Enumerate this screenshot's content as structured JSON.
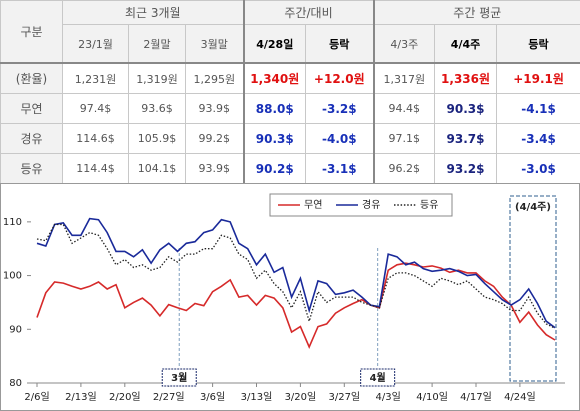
{
  "table": {
    "group_headers": [
      "구분",
      "최근 3개월",
      "주간/대비",
      "주간 평균"
    ],
    "columns": [
      "23/1월",
      "2월말",
      "3월말",
      "4/28일",
      "등락",
      "4/3주",
      "4/4주",
      "등락"
    ],
    "rows": [
      [
        "(환율)",
        "1,231원",
        "1,319원",
        "1,295원",
        "1,340원",
        "+12.0원",
        "1,317원",
        "1,336원",
        "+19.1원"
      ],
      [
        "무연",
        "97.4$",
        "93.6$",
        "93.9$",
        "88.0$",
        "-3.2$",
        "94.4$",
        "90.3$",
        "-4.1$"
      ],
      [
        "경유",
        "114.6$",
        "105.9$",
        "99.2$",
        "90.3$",
        "-4.0$",
        "97.1$",
        "93.7$",
        "-3.4$"
      ],
      [
        "등유",
        "114.4$",
        "104.1$",
        "93.9$",
        "90.2$",
        "-3.1$",
        "96.2$",
        "93.2$",
        "-3.0$"
      ]
    ]
  },
  "chart_data": {
    "type": "line",
    "categories": [
      "2/6일",
      null,
      null,
      null,
      null,
      "2/13일",
      null,
      null,
      null,
      null,
      "2/20일",
      null,
      null,
      null,
      null,
      "2/27일",
      null,
      null,
      null,
      null,
      "3/6일",
      null,
      null,
      null,
      null,
      "3/13일",
      null,
      null,
      null,
      null,
      "3/20일",
      null,
      null,
      null,
      null,
      "3/27일",
      null,
      null,
      null,
      null,
      "4/3일",
      null,
      null,
      null,
      null,
      "4/10일",
      null,
      null,
      null,
      null,
      "4/17일",
      null,
      null,
      null,
      null,
      "4/24일",
      null,
      null,
      null,
      null
    ],
    "series": [
      {
        "name": "무연",
        "color": "#d62a2a",
        "values": [
          92.2,
          96.8,
          98.8,
          98.6,
          98,
          97.5,
          98,
          98.8,
          97.5,
          98.3,
          94,
          95,
          95.8,
          94.5,
          92.5,
          94.6,
          94,
          93.5,
          94.8,
          94.4,
          97,
          98,
          99.2,
          96,
          96.3,
          94.5,
          96.3,
          95.8,
          94,
          89.5,
          90.5,
          86.7,
          90.5,
          91,
          93,
          94,
          94.8,
          95.5,
          94.5,
          94,
          101,
          102,
          102.3,
          102,
          101.6,
          101.8,
          101.4,
          100.6,
          101,
          100.5,
          100.5,
          99,
          98,
          96,
          94.5,
          91.3,
          93.2,
          90.8,
          89,
          88.0
        ]
      },
      {
        "name": "경유",
        "color": "#1a2a9a",
        "values": [
          106,
          105.5,
          109.5,
          109.8,
          107.5,
          107.5,
          110.6,
          110.4,
          108,
          104.5,
          104.5,
          103.5,
          104.8,
          102.3,
          104.8,
          106,
          104.5,
          106,
          106.3,
          108,
          108.5,
          110.4,
          110,
          106,
          105,
          102,
          104,
          100.6,
          101.5,
          96,
          99.5,
          93.5,
          99,
          98.5,
          96.5,
          96.8,
          97.3,
          96,
          94.5,
          94.2,
          104,
          103.5,
          102,
          102.5,
          101.3,
          100.8,
          101,
          101.3,
          100.8,
          100,
          100.2,
          98.5,
          97,
          95.5,
          94.5,
          95.5,
          97.5,
          94.8,
          91.5,
          90.3
        ]
      },
      {
        "name": "등유",
        "color": "#222222",
        "dash": "dotted",
        "values": [
          106.8,
          106.5,
          109.5,
          109.5,
          106,
          107,
          108,
          107.5,
          105,
          102,
          103,
          101.5,
          102,
          101,
          101.5,
          103.5,
          102.5,
          104,
          104,
          105,
          105,
          107.5,
          107,
          104,
          103,
          99.5,
          101,
          98.5,
          97,
          94,
          97,
          91.5,
          97,
          95,
          96,
          96,
          96,
          95,
          94.5,
          94,
          99.5,
          100.5,
          100.5,
          100,
          99,
          98,
          99.5,
          99,
          98.3,
          99,
          97.5,
          96,
          95.5,
          94.8,
          93.5,
          93.5,
          96,
          93,
          91,
          90.2
        ]
      }
    ],
    "ylim": [
      80,
      115
    ],
    "yticks": [
      80,
      90,
      100,
      110
    ],
    "annotations": [
      "3월",
      "4월",
      "(4/4주)"
    ]
  }
}
